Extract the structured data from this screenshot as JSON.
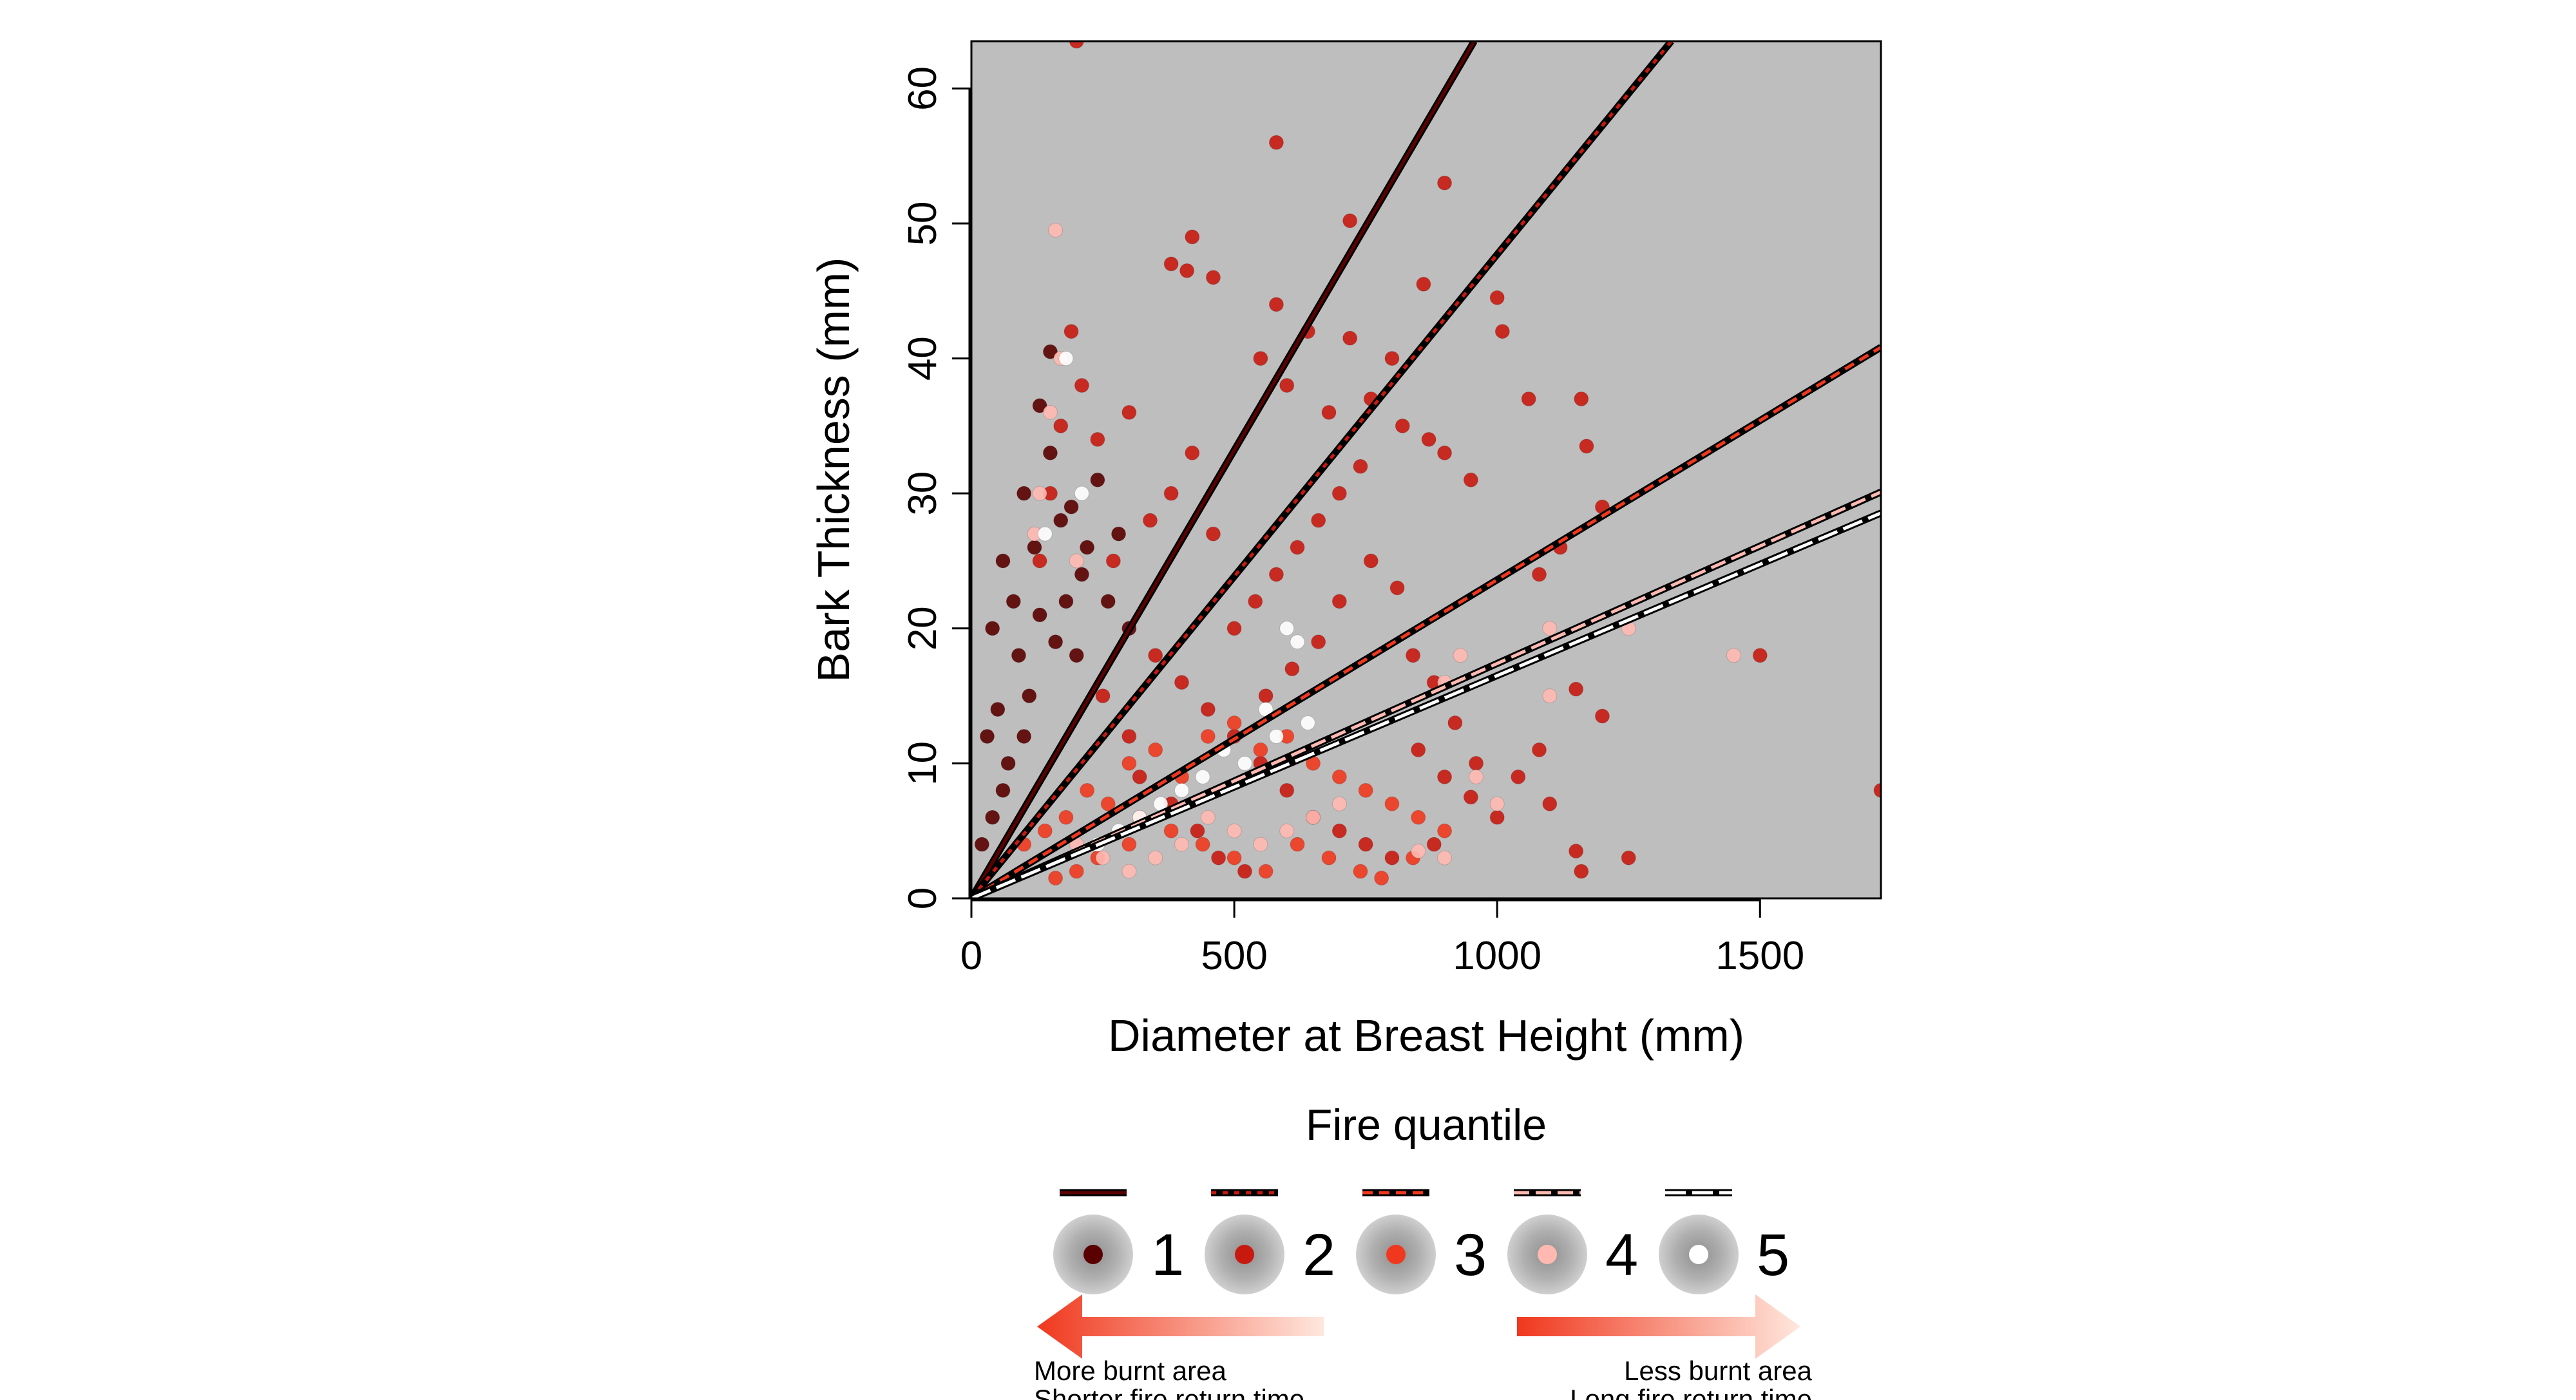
{
  "chart_data": {
    "type": "scatter",
    "xlabel": "Diameter at Breast Height (mm)",
    "ylabel": "Bark Thickness (mm)",
    "xlim": [
      0,
      1730
    ],
    "ylim": [
      0,
      63.5
    ],
    "xticks": [
      "0",
      "500",
      "1000",
      "1500"
    ],
    "xtick_values": [
      0,
      500,
      1000,
      1500
    ],
    "yticks": [
      "0",
      "10",
      "20",
      "30",
      "40",
      "50",
      "60"
    ],
    "ytick_values": [
      0,
      10,
      20,
      30,
      40,
      50,
      60
    ],
    "background": "#bebebe",
    "grid": false,
    "legend": {
      "title": "Fire quantile",
      "placement": "bottom",
      "entries": [
        "1",
        "2",
        "3",
        "4",
        "5"
      ],
      "left_arrow_text": [
        "More burnt area",
        "Shorter fire return time"
      ],
      "right_arrow_text": [
        "Less burnt area",
        "Long fire return time"
      ]
    },
    "series": [
      {
        "name": "1",
        "color": "#5a0000",
        "line_slope": 0.0664,
        "points": [
          [
            40,
            20
          ],
          [
            60,
            25
          ],
          [
            80,
            22
          ],
          [
            100,
            30
          ],
          [
            120,
            26
          ],
          [
            150,
            33
          ],
          [
            170,
            28
          ],
          [
            190,
            29
          ],
          [
            210,
            24
          ],
          [
            240,
            31
          ],
          [
            90,
            18
          ],
          [
            110,
            15
          ],
          [
            130,
            21
          ],
          [
            160,
            19
          ],
          [
            30,
            12
          ],
          [
            50,
            14
          ],
          [
            70,
            10
          ],
          [
            200,
            18
          ],
          [
            260,
            22
          ],
          [
            280,
            27
          ],
          [
            300,
            20
          ],
          [
            150,
            40.5
          ],
          [
            130,
            36.5
          ],
          [
            220,
            26
          ],
          [
            180,
            22
          ],
          [
            100,
            12
          ],
          [
            60,
            8
          ],
          [
            40,
            6
          ],
          [
            20,
            4
          ]
        ]
      },
      {
        "name": "2",
        "color": "#c8190f",
        "line_slope": 0.0477,
        "points": [
          [
            200,
            63.5
          ],
          [
            580,
            56
          ],
          [
            720,
            50.2
          ],
          [
            420,
            49
          ],
          [
            380,
            47
          ],
          [
            410,
            46.5
          ],
          [
            460,
            46
          ],
          [
            580,
            44
          ],
          [
            640,
            42
          ],
          [
            720,
            41.5
          ],
          [
            550,
            40
          ],
          [
            600,
            38
          ],
          [
            680,
            36
          ],
          [
            760,
            37
          ],
          [
            820,
            35
          ],
          [
            870,
            34
          ],
          [
            900,
            33
          ],
          [
            950,
            31
          ],
          [
            1000,
            44.5
          ],
          [
            1010,
            42
          ],
          [
            1060,
            37
          ],
          [
            1160,
            37
          ],
          [
            1170,
            33.5
          ],
          [
            1200,
            29
          ],
          [
            1080,
            24
          ],
          [
            1120,
            26
          ],
          [
            1150,
            15.5
          ],
          [
            1200,
            13.5
          ],
          [
            1500,
            18
          ],
          [
            900,
            53
          ],
          [
            860,
            45.5
          ],
          [
            800,
            40
          ],
          [
            740,
            32
          ],
          [
            700,
            30
          ],
          [
            660,
            28
          ],
          [
            620,
            26
          ],
          [
            580,
            24
          ],
          [
            540,
            22
          ],
          [
            500,
            20
          ],
          [
            460,
            27
          ],
          [
            420,
            33
          ],
          [
            380,
            30
          ],
          [
            340,
            28
          ],
          [
            300,
            36
          ],
          [
            270,
            25
          ],
          [
            240,
            34
          ],
          [
            210,
            38
          ],
          [
            190,
            42
          ],
          [
            170,
            35
          ],
          [
            150,
            30
          ],
          [
            130,
            25
          ],
          [
            350,
            18
          ],
          [
            400,
            16
          ],
          [
            450,
            14
          ],
          [
            500,
            12
          ],
          [
            550,
            10
          ],
          [
            600,
            8
          ],
          [
            650,
            6
          ],
          [
            700,
            5
          ],
          [
            750,
            4
          ],
          [
            800,
            3
          ],
          [
            850,
            11
          ],
          [
            900,
            9
          ],
          [
            950,
            7.5
          ],
          [
            1000,
            6
          ],
          [
            1080,
            11
          ],
          [
            1100,
            7
          ],
          [
            1150,
            3.5
          ],
          [
            1160,
            2
          ],
          [
            880,
            4
          ],
          [
            250,
            15
          ],
          [
            300,
            12
          ],
          [
            320,
            9
          ],
          [
            380,
            7
          ],
          [
            430,
            5
          ],
          [
            470,
            3
          ],
          [
            520,
            2
          ],
          [
            560,
            15
          ],
          [
            610,
            17
          ],
          [
            660,
            19
          ],
          [
            700,
            22
          ],
          [
            760,
            25
          ],
          [
            810,
            23
          ],
          [
            840,
            18
          ],
          [
            880,
            16
          ],
          [
            920,
            13
          ],
          [
            960,
            10
          ],
          [
            1040,
            9
          ],
          [
            1250,
            3
          ],
          [
            1730,
            8
          ]
        ]
      },
      {
        "name": "3",
        "color": "#f0381e",
        "line_slope": 0.0236,
        "points": [
          [
            300,
            10
          ],
          [
            350,
            11
          ],
          [
            400,
            9
          ],
          [
            450,
            12
          ],
          [
            500,
            13
          ],
          [
            550,
            11
          ],
          [
            600,
            12
          ],
          [
            650,
            10
          ],
          [
            700,
            9
          ],
          [
            750,
            8
          ],
          [
            800,
            7
          ],
          [
            850,
            6
          ],
          [
            900,
            5
          ],
          [
            220,
            8
          ],
          [
            180,
            6
          ],
          [
            140,
            5
          ],
          [
            100,
            4
          ],
          [
            260,
            7
          ],
          [
            320,
            6
          ],
          [
            380,
            5
          ],
          [
            440,
            4
          ],
          [
            500,
            3
          ],
          [
            560,
            2
          ],
          [
            620,
            4
          ],
          [
            680,
            3
          ],
          [
            740,
            2
          ],
          [
            780,
            1.5
          ],
          [
            840,
            3
          ],
          [
            300,
            4
          ],
          [
            240,
            3
          ],
          [
            200,
            2
          ],
          [
            160,
            1.5
          ]
        ]
      },
      {
        "name": "4",
        "color": "#ffb9b1",
        "line_slope": 0.0174,
        "points": [
          [
            160,
            49.5
          ],
          [
            150,
            36
          ],
          [
            170,
            40
          ],
          [
            130,
            30
          ],
          [
            120,
            27
          ],
          [
            200,
            25
          ],
          [
            900,
            16
          ],
          [
            930,
            18
          ],
          [
            1100,
            20
          ],
          [
            1250,
            20
          ],
          [
            1450,
            18
          ],
          [
            960,
            9
          ],
          [
            1000,
            7
          ],
          [
            1100,
            15
          ],
          [
            900,
            3
          ],
          [
            850,
            3.5
          ],
          [
            700,
            7
          ],
          [
            650,
            6
          ],
          [
            600,
            5
          ],
          [
            550,
            4
          ],
          [
            500,
            5
          ],
          [
            450,
            6
          ],
          [
            400,
            4
          ],
          [
            350,
            3
          ],
          [
            300,
            2
          ],
          [
            250,
            3
          ],
          [
            200,
            4
          ]
        ]
      },
      {
        "name": "5",
        "color": "#ffffff",
        "line_slope": 0.0165,
        "points": [
          [
            180,
            40
          ],
          [
            140,
            27
          ],
          [
            210,
            30
          ],
          [
            600,
            20
          ],
          [
            620,
            19
          ],
          [
            560,
            14
          ],
          [
            580,
            12
          ],
          [
            640,
            13
          ],
          [
            520,
            10
          ],
          [
            480,
            11
          ],
          [
            440,
            9
          ],
          [
            400,
            8
          ],
          [
            360,
            7
          ],
          [
            320,
            6
          ],
          [
            280,
            5
          ],
          [
            240,
            4
          ]
        ]
      }
    ]
  }
}
